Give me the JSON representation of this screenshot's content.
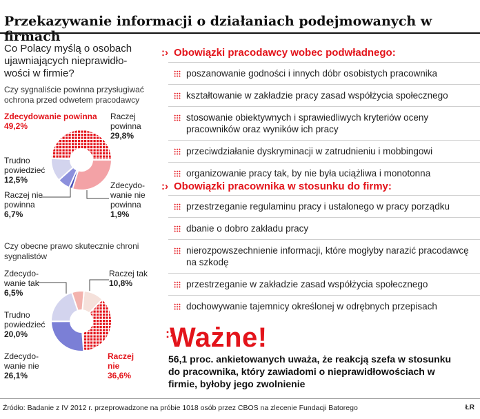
{
  "title": "Przekazywanie informacji o działaniach podejmowanych w firmach",
  "left": {
    "lead": "Co Polacy myślą o osobach ujawniających nieprawidło-wości w firmie?",
    "q1": "Czy sygnaliście powinna przysługiwać ochrona przed odwetem pracodawcy",
    "q2": "Czy obecne prawo skutecznie chroni sygnalistów"
  },
  "chart_data": [
    {
      "type": "pie",
      "title": "Czy sygnaliście powinna przysługiwać ochrona przed odwetem pracodawcy",
      "slices": [
        {
          "label": "Zdecydowanie powinna",
          "value": 49.2,
          "display": "49,2%",
          "color": "#e3141b",
          "pattern": "dots"
        },
        {
          "label": "Raczej powinna",
          "value": 29.8,
          "display": "29,8%",
          "color": "#f3a2a6"
        },
        {
          "label": "Zdecydo-wanie nie powinna",
          "value": 1.9,
          "display": "1,9%",
          "color": "#4a4fb8"
        },
        {
          "label": "Raczej nie powinna",
          "value": 6.7,
          "display": "6,7%",
          "color": "#8c90dc"
        },
        {
          "label": "Trudno powiedzieć",
          "value": 12.5,
          "display": "12,5%",
          "color": "#d3d4ee"
        }
      ]
    },
    {
      "type": "pie",
      "title": "Czy obecne prawo skutecznie chroni sygnalistów",
      "slices": [
        {
          "label": "Raczej tak",
          "value": 10.8,
          "display": "10,8%",
          "color": "#f5e1db"
        },
        {
          "label": "Raczej nie",
          "value": 36.6,
          "display": "36,6%",
          "color": "#e3141b",
          "pattern": "dots"
        },
        {
          "label": "Zdecydo-wanie nie",
          "value": 26.1,
          "display": "26,1%",
          "color": "#7b7fd6"
        },
        {
          "label": "Trudno powiedzieć",
          "value": 20.0,
          "display": "20,0%",
          "color": "#d3d4ee"
        },
        {
          "label": "Zdecydo-wanie tak",
          "value": 6.5,
          "display": "6,5%",
          "color": "#f3b3ae"
        }
      ]
    }
  ],
  "employer": {
    "heading": "Obowiązki pracodawcy wobec podwładnego:",
    "items": [
      "poszanowanie godności i innych dóbr osobistych pracownika",
      "kształtowanie w zakładzie  pracy zasad współżycia społecznego",
      "stosowanie obiektywnych  i sprawiedliwych kryteriów oceny pracowników  oraz wyników ich pracy",
      "przeciwdziałanie dyskryminacji w zatrudnieniu i mobbingowi",
      "organizowanie pracy tak, by nie była uciążliwa i monotonna"
    ]
  },
  "employee": {
    "heading": "Obowiązki pracownika w stosunku do firmy:",
    "items": [
      "przestrzeganie regulaminu pracy i ustalonego w pracy porządku",
      "dbanie o dobro zakładu pracy",
      "nierozpowszechnienie informacji, które mogłyby narazić pracodawcę na szkodę",
      "przestrzeganie w zakładzie zasad współżycia społecznego",
      "dochowywanie tajemnicy określonej w odrębnych przepisach"
    ]
  },
  "important": {
    "heading": "Ważne!",
    "text": "56,1 proc. ankietowanych uważa, że reakcją szefa w stosunku do pracownika, który zawiadomi o nieprawidłowościach w firmie, byłoby jego zwolnienie"
  },
  "source": "Źródło: Badanie z IV 2012 r. przeprowadzone na próbie 1018 osób przez CBOS na zlecenie Fundacji Batorego",
  "logo": "ŁR"
}
